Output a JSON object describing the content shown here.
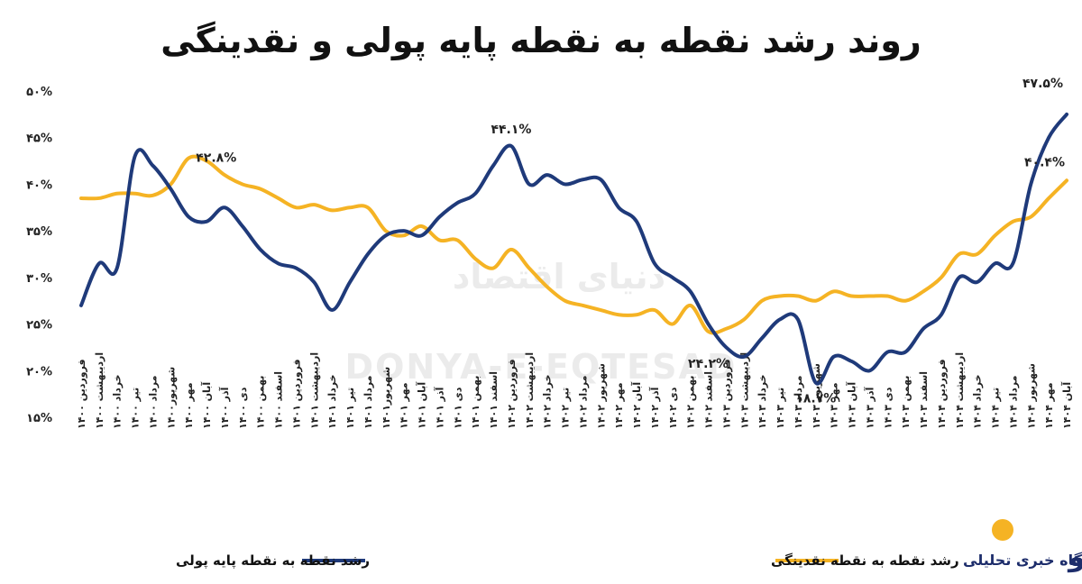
{
  "chart_data": {
    "type": "line",
    "title": "روند رشد نقطه به نقطه پایه پولی و نقدینگی",
    "xlabel": "",
    "ylabel": "",
    "ylim": [
      15,
      50
    ],
    "yticks": [
      15,
      20,
      25,
      30,
      35,
      40,
      45,
      50
    ],
    "ytick_labels": [
      "۱۵%",
      "۲۰%",
      "۲۵%",
      "۳۰%",
      "۳۵%",
      "۴۰%",
      "۴۵%",
      "۵۰%"
    ],
    "categories": [
      "فروردین ۱۴۰۰",
      "اردیبهشت ۱۴۰۰",
      "خرداد ۱۴۰۰",
      "تیر ۱۴۰۰",
      "مرداد ۱۴۰۰",
      "شهریور۱۴۰۰",
      "مهر ۱۴۰۰",
      "آبان ۱۴۰۰",
      "آذر ۱۴۰۰",
      "دی ۱۴۰۰",
      "بهمن ۱۴۰۰",
      "اسفند ۱۴۰۰",
      "فروردین ۱۴۰۱",
      "اردیبهشت ۱۴۰۱",
      "خرداد ۱۴۰۱",
      "تیر ۱۴۰۱",
      "مرداد ۱۴۰۱",
      "شهریور۱۴۰۱",
      "مهر ۱۴۰۱",
      "آبان ۱۴۰۱",
      "آذر ۱۴۰۱",
      "دی ۱۴۰۱",
      "بهمن ۱۴۰۱",
      "اسفند ۱۴۰۱",
      "فروردین ۱۴۰۲",
      "اردیبهشت ۱۴۰۲",
      "خرداد ۱۴۰۲",
      "تیر ۱۴۰۲",
      "مرداد ۱۴۰۲",
      "شهریور ۱۴۰۲",
      "مهر ۱۴۰۲",
      "آبان ۱۴۰۲",
      "آذر ۱۴۰۲",
      "دی ۱۴۰۲",
      "بهمن ۱۴۰۲",
      "اسفند ۱۴۰۲",
      "فروردین ۱۴۰۳",
      "اردیبهشت ۱۴۰۳",
      "خرداد ۱۴۰۳",
      "تیر ۱۴۰۳",
      "مرداد ۱۴۰۳",
      "شهریور ۱۴۰۳",
      "مهر ۱۴۰۳",
      "آبان ۱۴۰۳",
      "آذر ۱۴۰۳",
      "دی ۱۴۰۳",
      "بهمن ۱۴۰۳",
      "اسفند ۱۴۰۳",
      "فروردین ۱۴۰۴",
      "اردیبهشت ۱۴۰۴",
      "خرداد ۱۴۰۴",
      "تیر ۱۴۰۴",
      "مرداد ۱۴۰۴",
      "شهریور ۱۴۰۴",
      "مهر ۱۴۰۴",
      "آبان ۱۴۰۴"
    ],
    "series": [
      {
        "name": "رشد نقطه به نقطه پایه پولی",
        "color": "#1f3a7a",
        "values": [
          27,
          31.5,
          31,
          43,
          42,
          39.5,
          36.5,
          36,
          37.5,
          35.5,
          33,
          31.5,
          31,
          29.5,
          26.5,
          29.5,
          32.5,
          34.5,
          35,
          34.5,
          36.5,
          38,
          39,
          42,
          44.1,
          40,
          41,
          40,
          40.5,
          40.5,
          37.5,
          36,
          31.5,
          30,
          28.5,
          25,
          22.5,
          21.5,
          23.5,
          25.5,
          25.5,
          18.7,
          21.5,
          21,
          20,
          22,
          22,
          24.5,
          26,
          30,
          29.5,
          31.5,
          31.5,
          40,
          45,
          47.5
        ]
      },
      {
        "name": "رشد نقطه به نقطه نقدینگی",
        "color": "#f5b324",
        "values": [
          38.5,
          38.5,
          39,
          39,
          38.8,
          40,
          42.8,
          42.5,
          41,
          40,
          39.5,
          38.5,
          37.5,
          37.8,
          37.2,
          37.5,
          37.5,
          35,
          34.5,
          35.5,
          34,
          34,
          32,
          31,
          33,
          31,
          29,
          27.5,
          27,
          26.5,
          26,
          26,
          26.5,
          25,
          27,
          24.2,
          24.5,
          25.5,
          27.5,
          28,
          28,
          27.5,
          28.5,
          28,
          28,
          28,
          27.5,
          28.5,
          30,
          32.5,
          32.5,
          34.5,
          36,
          36.5,
          38.5,
          40.4
        ]
      }
    ],
    "annotations": [
      {
        "series": 0,
        "index": 24,
        "text": "۴۴.۱%"
      },
      {
        "series": 0,
        "index": 41,
        "text": "۱۸.۷%"
      },
      {
        "series": 0,
        "index": 55,
        "text": "۴۷.۵%"
      },
      {
        "series": 1,
        "index": 6,
        "text": "۴۲.۸%"
      },
      {
        "series": 1,
        "index": 35,
        "text": "۲۴.۲%"
      },
      {
        "series": 1,
        "index": 55,
        "text": "۴۰.۴%"
      }
    ],
    "legend": {
      "position": "bottom",
      "items": [
        "رشد نقطه به نقطه نقدینگی",
        "رشد نقطه به نقطه پایه پولی"
      ]
    },
    "grid": false
  },
  "watermark": {
    "text": "DONYA-E-EQTESAD",
    "logo_text": "دنیای اقتصاد",
    "color": "#ebebeb"
  },
  "brand": {
    "logo_text": "روزنو",
    "tagline": "پایگاه خبری تحلیلی",
    "color": "#1d2d6b",
    "accent": "#f5b324"
  }
}
